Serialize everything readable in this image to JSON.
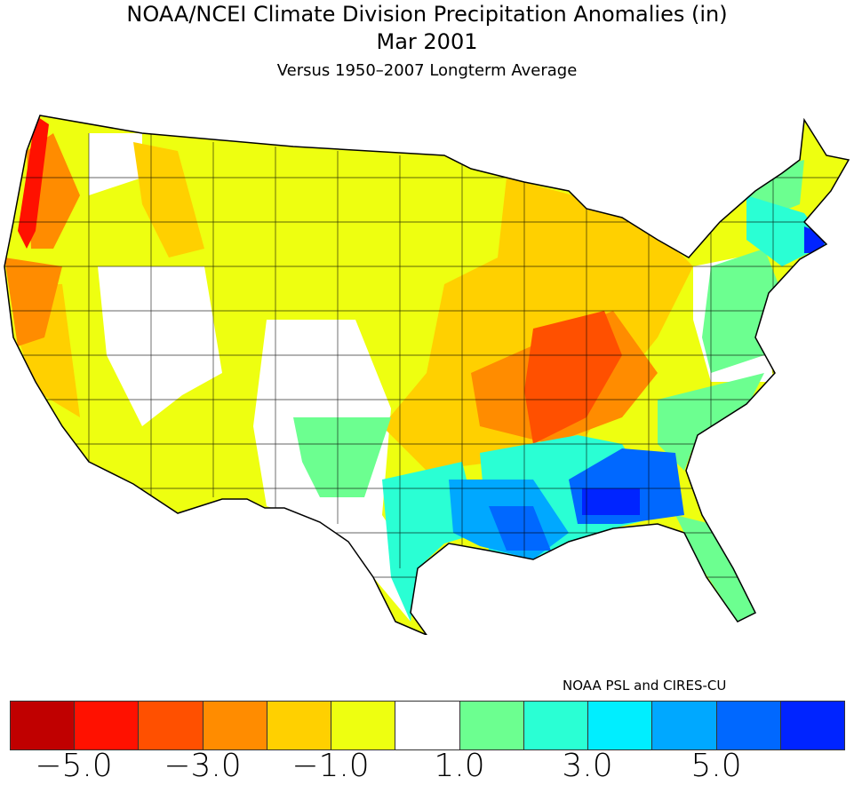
{
  "title": {
    "line1": "NOAA/NCEI Climate Division Precipitation Anomalies (in)",
    "line2": "Mar 2001",
    "line3": "Versus 1950-2007 Longterm Average"
  },
  "credit": "NOAA PSL and CIRES-CU",
  "colorbar": {
    "colors": [
      "#c00000",
      "#ff1100",
      "#ff5000",
      "#ff8c00",
      "#ffd000",
      "#eeff10",
      "#ffffff",
      "#6cff90",
      "#2affd4",
      "#00eeff",
      "#00a8ff",
      "#0068ff",
      "#0024ff"
    ],
    "labels": [
      "-5.0",
      "-3.0",
      "-1.0",
      "1.0",
      "3.0",
      "5.0"
    ]
  },
  "regions": [
    {
      "name": "pacific-northwest-coast",
      "category": "-5 to -4"
    },
    {
      "name": "northern-california-coast",
      "category": "-4 to -3"
    },
    {
      "name": "ohio-tennessee-valley",
      "category": "-3 to -2"
    },
    {
      "name": "great-lakes-ozarks",
      "category": "-2 to -1"
    },
    {
      "name": "great-plains-west",
      "category": "-1 to 0"
    },
    {
      "name": "great-basin-southwest-texas",
      "category": "0 to 1"
    },
    {
      "name": "new-mexico-carolinas-florida",
      "category": "1 to 2"
    },
    {
      "name": "south-texas-northeast",
      "category": "2 to 3"
    },
    {
      "name": "gulf-coast",
      "category": "3 to 5"
    },
    {
      "name": "southern-alabama-massachusetts",
      "category": "5+"
    }
  ]
}
